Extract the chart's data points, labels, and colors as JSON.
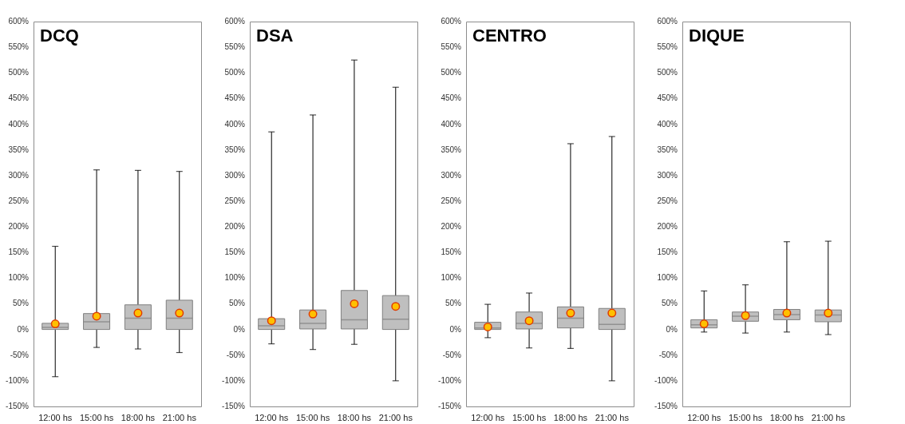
{
  "chart_data": [
    {
      "type": "box",
      "title": "DCQ",
      "categories": [
        "12:00 hs",
        "15:00 hs",
        "18:00 hs",
        "21:00 hs"
      ],
      "color": "#bfbfbf",
      "marker": "circle",
      "ylim": [
        -150,
        600
      ],
      "yticks": [
        {
          "value": -150,
          "label": "-150%"
        },
        {
          "value": -100,
          "label": "-100%"
        },
        {
          "value": -50,
          "label": "-50%"
        },
        {
          "value": 0,
          "label": "0%"
        },
        {
          "value": 50,
          "label": "50%"
        },
        {
          "value": 100,
          "label": "100%"
        },
        {
          "value": 150,
          "label": "150%"
        },
        {
          "value": 200,
          "label": "200%"
        },
        {
          "value": 250,
          "label": "250%"
        },
        {
          "value": 300,
          "label": "300%"
        },
        {
          "value": 350,
          "label": "350%"
        },
        {
          "value": 400,
          "label": "400%"
        },
        {
          "value": 450,
          "label": "450%"
        },
        {
          "value": 500,
          "label": "500%"
        },
        {
          "value": 550,
          "label": "550%"
        },
        {
          "value": 600,
          "label": "600%"
        }
      ],
      "boxes": [
        {
          "low": -92,
          "q1": 0,
          "median": 4,
          "q3": 12,
          "high": 162,
          "mean": 11
        },
        {
          "low": -35,
          "q1": 0,
          "median": 15,
          "q3": 31,
          "high": 311,
          "mean": 26
        },
        {
          "low": -38,
          "q1": 0,
          "median": 22,
          "q3": 48,
          "high": 310,
          "mean": 32
        },
        {
          "low": -45,
          "q1": 0,
          "median": 22,
          "q3": 57,
          "high": 308,
          "mean": 32
        }
      ]
    },
    {
      "type": "box",
      "title": "DSA",
      "categories": [
        "12:00 hs",
        "15:00 hs",
        "18:00 hs",
        "21:00 hs"
      ],
      "color": "#bfbfbf",
      "marker": "circle",
      "ylim": [
        -150,
        600
      ],
      "yticks": [
        {
          "value": -150,
          "label": "-150%"
        },
        {
          "value": -100,
          "label": "-100%"
        },
        {
          "value": -50,
          "label": "-50%"
        },
        {
          "value": 0,
          "label": "0%"
        },
        {
          "value": 50,
          "label": "50%"
        },
        {
          "value": 100,
          "label": "100%"
        },
        {
          "value": 150,
          "label": "150%"
        },
        {
          "value": 200,
          "label": "200%"
        },
        {
          "value": 250,
          "label": "250%"
        },
        {
          "value": 300,
          "label": "300%"
        },
        {
          "value": 350,
          "label": "350%"
        },
        {
          "value": 400,
          "label": "400%"
        },
        {
          "value": 450,
          "label": "450%"
        },
        {
          "value": 500,
          "label": "500%"
        },
        {
          "value": 550,
          "label": "550%"
        },
        {
          "value": 600,
          "label": "600%"
        }
      ],
      "boxes": [
        {
          "low": -28,
          "q1": 0,
          "median": 7,
          "q3": 21,
          "high": 385,
          "mean": 17
        },
        {
          "low": -39,
          "q1": 1,
          "median": 12,
          "q3": 38,
          "high": 418,
          "mean": 30
        },
        {
          "low": -29,
          "q1": 1,
          "median": 19,
          "q3": 76,
          "high": 525,
          "mean": 50
        },
        {
          "low": -100,
          "q1": 0,
          "median": 20,
          "q3": 66,
          "high": 472,
          "mean": 45
        }
      ]
    },
    {
      "type": "box",
      "title": "CENTRO",
      "categories": [
        "12:00 hs",
        "15:00 hs",
        "18:00 hs",
        "21:00 hs"
      ],
      "color": "#bfbfbf",
      "marker": "circle",
      "ylim": [
        -150,
        600
      ],
      "yticks": [
        {
          "value": -150,
          "label": "-150%"
        },
        {
          "value": -100,
          "label": "-100%"
        },
        {
          "value": -50,
          "label": "-50%"
        },
        {
          "value": 0,
          "label": "0%"
        },
        {
          "value": 50,
          "label": "50%"
        },
        {
          "value": 100,
          "label": "100%"
        },
        {
          "value": 150,
          "label": "150%"
        },
        {
          "value": 200,
          "label": "200%"
        },
        {
          "value": 250,
          "label": "250%"
        },
        {
          "value": 300,
          "label": "300%"
        },
        {
          "value": 350,
          "label": "350%"
        },
        {
          "value": 400,
          "label": "400%"
        },
        {
          "value": 450,
          "label": "450%"
        },
        {
          "value": 500,
          "label": "500%"
        },
        {
          "value": 550,
          "label": "550%"
        },
        {
          "value": 600,
          "label": "600%"
        }
      ],
      "boxes": [
        {
          "low": -16,
          "q1": 0,
          "median": 3,
          "q3": 14,
          "high": 49,
          "mean": 5
        },
        {
          "low": -36,
          "q1": 1,
          "median": 12,
          "q3": 34,
          "high": 71,
          "mean": 17
        },
        {
          "low": -37,
          "q1": 3,
          "median": 22,
          "q3": 44,
          "high": 362,
          "mean": 32
        },
        {
          "low": -100,
          "q1": 0,
          "median": 10,
          "q3": 41,
          "high": 376,
          "mean": 32
        }
      ]
    },
    {
      "type": "box",
      "title": "DIQUE",
      "categories": [
        "12:00 hs",
        "15:00 hs",
        "18:00 hs",
        "21:00 hs"
      ],
      "color": "#bfbfbf",
      "marker": "circle",
      "ylim": [
        -150,
        600
      ],
      "yticks": [
        {
          "value": -150,
          "label": "-150%"
        },
        {
          "value": -100,
          "label": "-100%"
        },
        {
          "value": -50,
          "label": "-50%"
        },
        {
          "value": 0,
          "label": "0%"
        },
        {
          "value": 50,
          "label": "50%"
        },
        {
          "value": 100,
          "label": "100%"
        },
        {
          "value": 150,
          "label": "150%"
        },
        {
          "value": 200,
          "label": "200%"
        },
        {
          "value": 250,
          "label": "250%"
        },
        {
          "value": 300,
          "label": "300%"
        },
        {
          "value": 350,
          "label": "350%"
        },
        {
          "value": 400,
          "label": "400%"
        },
        {
          "value": 450,
          "label": "450%"
        },
        {
          "value": 500,
          "label": "500%"
        },
        {
          "value": 550,
          "label": "550%"
        },
        {
          "value": 600,
          "label": "600%"
        }
      ],
      "boxes": [
        {
          "low": -5,
          "q1": 3,
          "median": 9,
          "q3": 19,
          "high": 75,
          "mean": 11
        },
        {
          "low": -7,
          "q1": 16,
          "median": 26,
          "q3": 34,
          "high": 87,
          "mean": 27
        },
        {
          "low": -5,
          "q1": 19,
          "median": 29,
          "q3": 39,
          "high": 171,
          "mean": 32
        },
        {
          "low": -10,
          "q1": 15,
          "median": 28,
          "q3": 38,
          "high": 172,
          "mean": 32
        }
      ]
    }
  ]
}
